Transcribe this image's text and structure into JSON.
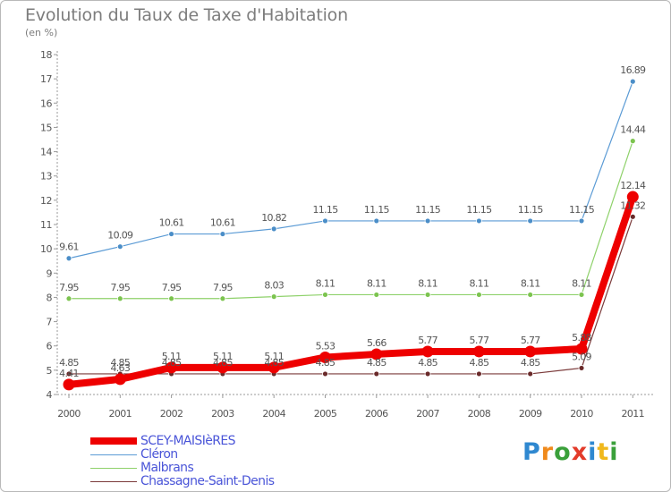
{
  "title": "Evolution du Taux de Taxe d'Habitation",
  "subtitle": "(en %)",
  "logo": {
    "text": "Proxiti",
    "letter_colors": [
      "#2f88d0",
      "#f08a1c",
      "#3aa03a",
      "#e33b2a",
      "#2f88d0",
      "#f0b81c",
      "#3aa03a"
    ]
  },
  "chart_data": {
    "type": "line",
    "title": "Evolution du Taux de Taxe d'Habitation",
    "ylabel": "(en %)",
    "xlabel": "",
    "x": [
      "2000",
      "2001",
      "2002",
      "2003",
      "2004",
      "2005",
      "2006",
      "2007",
      "2008",
      "2009",
      "2010",
      "2011"
    ],
    "ylim": [
      4,
      18
    ],
    "yticks": [
      "4",
      "5",
      "6",
      "7",
      "8",
      "9",
      "10",
      "11",
      "12",
      "13",
      "14",
      "15",
      "16",
      "17",
      "18"
    ],
    "grid": false,
    "legend_position": "bottom-left",
    "series": [
      {
        "name": "Cléron",
        "color": "#5b9bd5",
        "marker": "#4b8ec8",
        "values": [
          9.61,
          10.09,
          10.61,
          10.61,
          10.82,
          11.15,
          11.15,
          11.15,
          11.15,
          11.15,
          11.15,
          16.89
        ],
        "labels": [
          "9.61",
          "10.09",
          "10.61",
          "10.61",
          "10.82",
          "11.15",
          "11.15",
          "11.15",
          "11.15",
          "11.15",
          "11.15",
          "16.89"
        ]
      },
      {
        "name": "Malbrans",
        "color": "#8ed16a",
        "marker": "#7cc44f",
        "values": [
          7.95,
          7.95,
          7.95,
          7.95,
          8.03,
          8.11,
          8.11,
          8.11,
          8.11,
          8.11,
          8.11,
          14.44
        ],
        "labels": [
          "7.95",
          "7.95",
          "7.95",
          "7.95",
          "8.03",
          "8.11",
          "8.11",
          "8.11",
          "8.11",
          "8.11",
          "8.11",
          "14.44"
        ]
      },
      {
        "name": "Chassagne-Saint-Denis",
        "color": "#7b3a3a",
        "marker": "#6a2a2a",
        "values": [
          4.85,
          4.85,
          4.85,
          4.85,
          4.85,
          4.85,
          4.85,
          4.85,
          4.85,
          4.85,
          5.09,
          11.32
        ],
        "labels": [
          "4.85",
          "4.85",
          "4.85",
          "4.85",
          "4.85",
          "4.85",
          "4.85",
          "4.85",
          "4.85",
          "4.85",
          "5.09",
          "11.32"
        ]
      },
      {
        "name": "SCEY-MAISIèRES",
        "color": "#ee0000",
        "marker": "#ee0000",
        "values": [
          4.41,
          4.63,
          5.11,
          5.11,
          5.11,
          5.53,
          5.66,
          5.77,
          5.77,
          5.77,
          5.88,
          12.14
        ],
        "labels": [
          "4.41",
          "4.63",
          "5.11",
          "5.11",
          "5.11",
          "5.53",
          "5.66",
          "5.77",
          "5.77",
          "5.77",
          "5.88",
          "12.14"
        ]
      }
    ],
    "legend": [
      "SCEY-MAISIèRES",
      "Cléron",
      "Malbrans",
      "Chassagne-Saint-Denis"
    ]
  }
}
